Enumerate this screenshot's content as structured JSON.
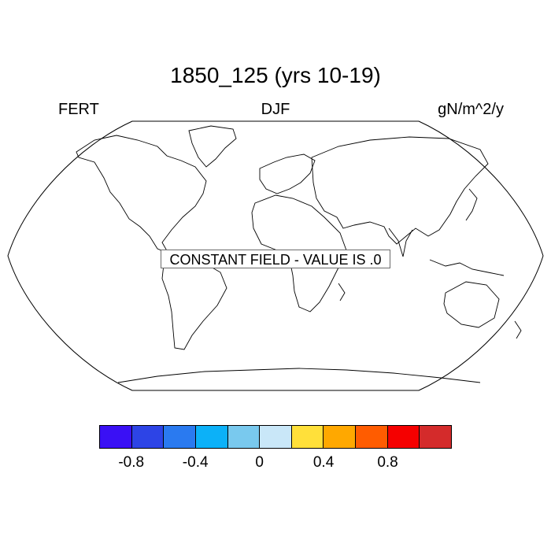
{
  "title": "1850_125 (yrs 10-19)",
  "left_label": "FERT",
  "center_label": "DJF",
  "right_label": "gN/m^2/y",
  "note": "CONSTANT FIELD - VALUE IS .0",
  "colorbar": {
    "colors": [
      "#3a10f5",
      "#2d44e6",
      "#2a7af0",
      "#0cb1f8",
      "#79c9ee",
      "#c9e7f8",
      "#ffe03a",
      "#ffa800",
      "#ff5c00",
      "#f50000",
      "#d42b2b"
    ],
    "tick_labels": [
      "-0.8",
      "-0.4",
      "0",
      "0.4",
      "0.8"
    ]
  }
}
